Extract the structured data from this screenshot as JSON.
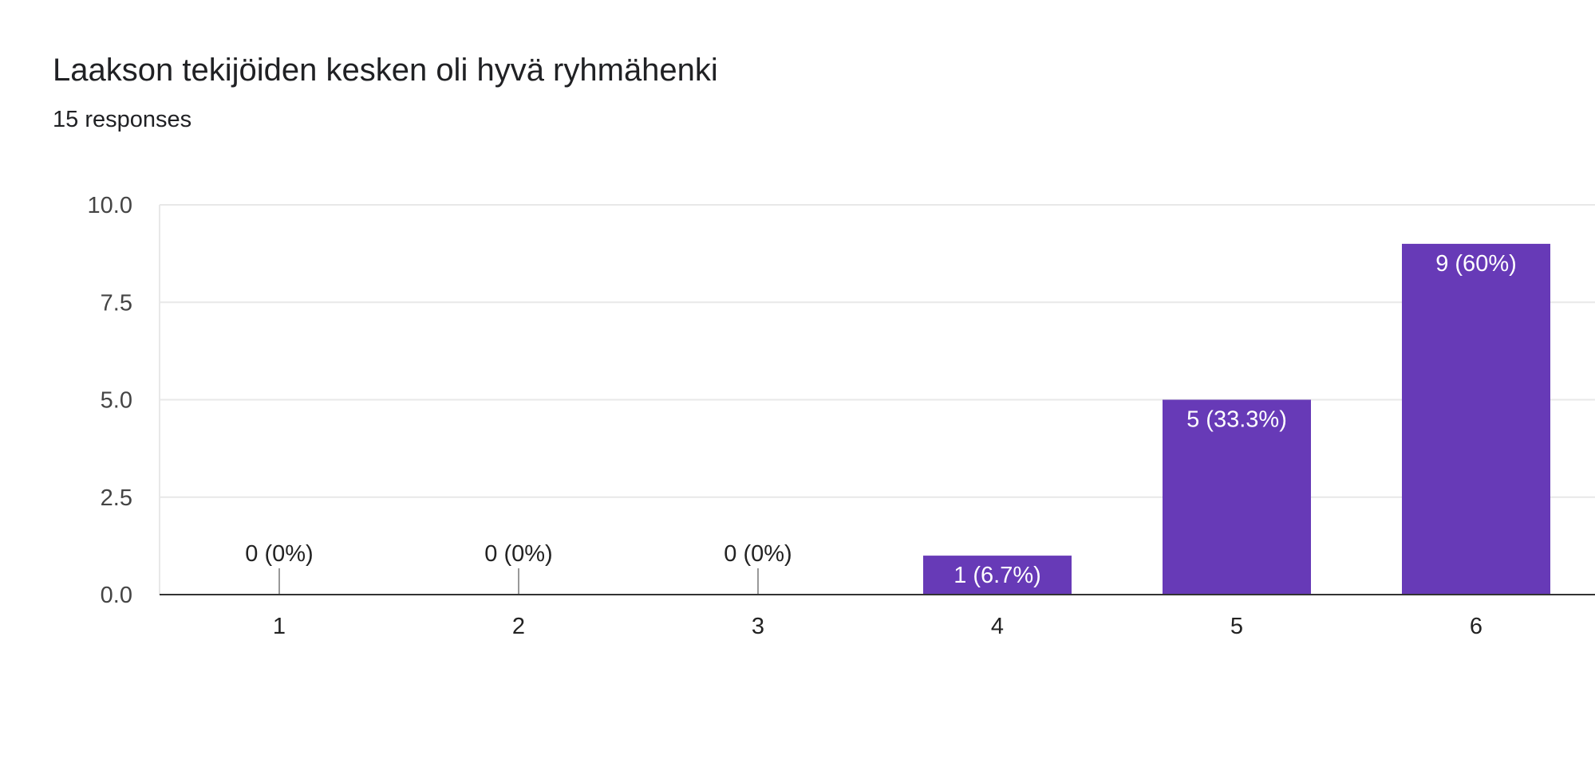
{
  "header": {
    "title": "Laakson tekijöiden kesken oli hyvä ryhmähenki",
    "subtitle": "15 responses"
  },
  "colors": {
    "bar": "#673ab7",
    "gridline": "#e8e8e8",
    "baseline": "#333333",
    "label_inside": "#ffffff",
    "label_outside": "#222222"
  },
  "chart_data": {
    "type": "bar",
    "title": "Laakson tekijöiden kesken oli hyvä ryhmähenki",
    "categories": [
      "1",
      "2",
      "3",
      "4",
      "5",
      "6"
    ],
    "values": [
      0,
      0,
      0,
      1,
      5,
      9
    ],
    "data_labels": [
      "0 (0%)",
      "0 (0%)",
      "0 (0%)",
      "1 (6.7%)",
      "5 (33.3%)",
      "9 (60%)"
    ],
    "y_ticks": [
      "0.0",
      "2.5",
      "5.0",
      "7.5",
      "10.0"
    ],
    "ylim": [
      0,
      10
    ],
    "xlabel": "",
    "ylabel": "",
    "grid": true,
    "legend": "none"
  }
}
